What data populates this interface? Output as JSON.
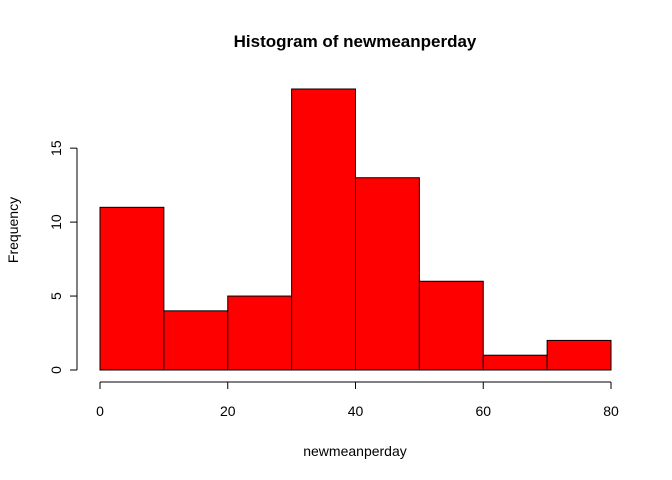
{
  "chart_data": {
    "type": "bar",
    "title": "Histogram of newmeanperday",
    "xlabel": "newmeanperday",
    "ylabel": "Frequency",
    "bins": [
      {
        "x0": 0,
        "x1": 10,
        "count": 11
      },
      {
        "x0": 10,
        "x1": 20,
        "count": 4
      },
      {
        "x0": 20,
        "x1": 30,
        "count": 5
      },
      {
        "x0": 30,
        "x1": 40,
        "count": 19
      },
      {
        "x0": 40,
        "x1": 50,
        "count": 13
      },
      {
        "x0": 50,
        "x1": 60,
        "count": 6
      },
      {
        "x0": 60,
        "x1": 70,
        "count": 1
      },
      {
        "x0": 70,
        "x1": 80,
        "count": 2
      }
    ],
    "xlim": [
      0,
      80
    ],
    "ylim": [
      0,
      19
    ],
    "x_ticks": [
      "0",
      "20",
      "40",
      "60",
      "80"
    ],
    "y_ticks": [
      "0",
      "5",
      "10",
      "15"
    ],
    "grid": false,
    "bar_color": "#ff0000",
    "edge_color": "#000000"
  }
}
